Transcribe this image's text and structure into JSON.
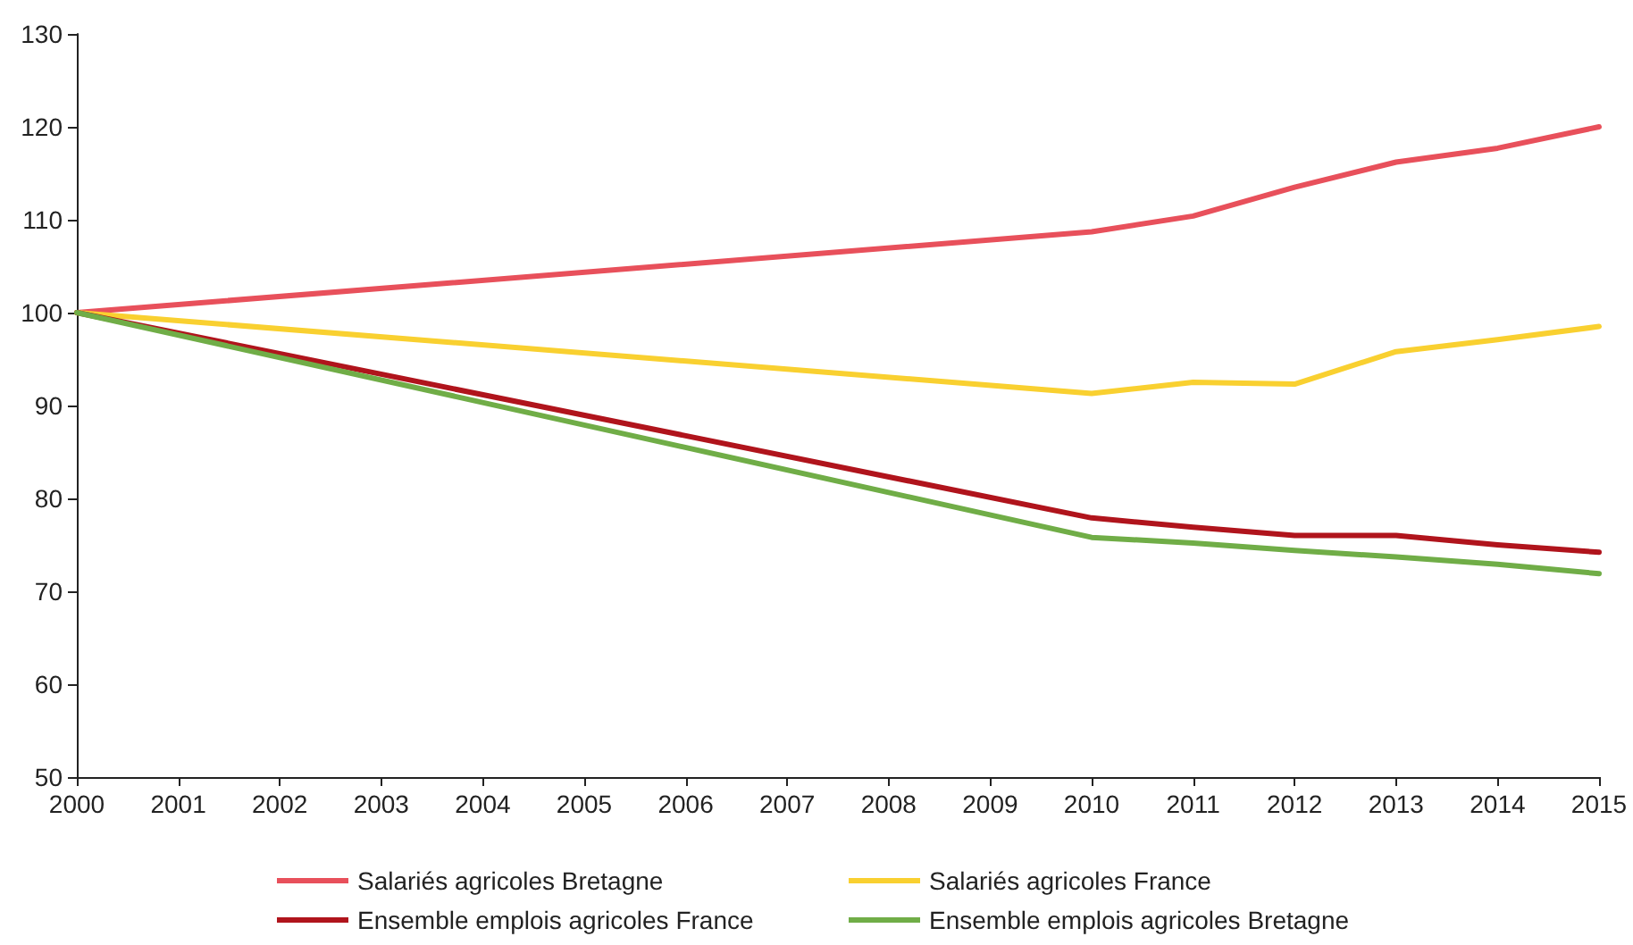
{
  "chart_data": {
    "type": "line",
    "xlim": [
      2000,
      2015
    ],
    "xticks": [
      2000,
      2001,
      2002,
      2003,
      2004,
      2005,
      2006,
      2007,
      2008,
      2009,
      2010,
      2011,
      2012,
      2013,
      2014,
      2015
    ],
    "ylim": [
      50,
      130
    ],
    "yticks": [
      50,
      60,
      70,
      80,
      90,
      100,
      110,
      120,
      130
    ],
    "grid": false,
    "legend": "bottom",
    "marker": "none",
    "line_style": "solid",
    "series": [
      {
        "name": "Salariés agricoles Bretagne",
        "color": "#e8505b",
        "x": [
          2000,
          2010,
          2011,
          2012,
          2013,
          2014,
          2015
        ],
        "values": [
          100,
          108.7,
          110.4,
          113.5,
          116.2,
          117.7,
          120
        ]
      },
      {
        "name": "Salariés agricoles France",
        "color": "#f9d030",
        "x": [
          2000,
          2010,
          2011,
          2012,
          2013,
          2014,
          2015
        ],
        "values": [
          100,
          91.3,
          92.5,
          92.3,
          95.8,
          97.1,
          98.5
        ]
      },
      {
        "name": "Ensemble emplois agricoles France",
        "color": "#b0141c",
        "x": [
          2000,
          2010,
          2011,
          2012,
          2013,
          2014,
          2015
        ],
        "values": [
          100,
          77.9,
          76.9,
          76.0,
          76.0,
          75.0,
          74.2
        ]
      },
      {
        "name": "Ensemble emplois agricoles Bretagne",
        "color": "#70ad47",
        "x": [
          2000,
          2010,
          2011,
          2012,
          2013,
          2014,
          2015
        ],
        "values": [
          100,
          75.8,
          75.2,
          74.4,
          73.7,
          72.9,
          71.9
        ]
      }
    ]
  }
}
